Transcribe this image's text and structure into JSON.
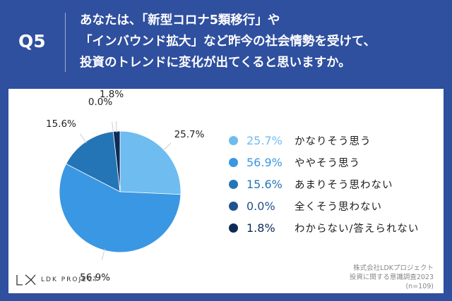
{
  "header": {
    "question_no": "Q5",
    "lines": [
      "あなたは、「新型コロナ5類移行」や",
      "「インバウンド拡大」など昨今の社会情勢を受けて、",
      "投資のトレンドに変化が出てくると思いますか。"
    ]
  },
  "chart_data": {
    "type": "pie",
    "categories": [
      "かなりそう思う",
      "ややそう思う",
      "あまりそう思わない",
      "全くそう思わない",
      "わからない/答えられない"
    ],
    "values": [
      25.7,
      56.9,
      15.6,
      0.0,
      1.8
    ],
    "value_labels": [
      "25.7%",
      "56.9%",
      "15.6%",
      "0.0%",
      "1.8%"
    ],
    "colors": [
      "#6ebcf0",
      "#3a97e3",
      "#2475b5",
      "#21528d",
      "#0d2b57"
    ],
    "start_angle_deg": 0,
    "direction": "clockwise",
    "legend_position": "right"
  },
  "footer": {
    "logo_text": "LDK PROJECT",
    "source_lines": [
      "株式会社LDKプロジェクト",
      "投資に関する意識調査2023",
      "(n=109)"
    ]
  }
}
